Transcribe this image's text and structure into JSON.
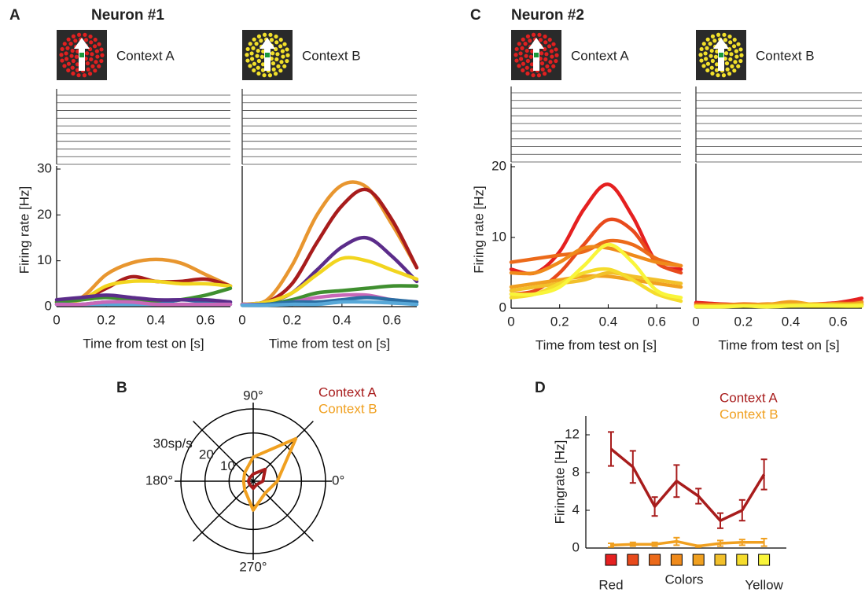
{
  "panels": [
    {
      "label": "A",
      "title": "Neuron  #1"
    },
    {
      "label": "B"
    },
    {
      "label": "C",
      "title": "Neuron  #2"
    },
    {
      "label": "D"
    }
  ],
  "chart_data": [
    {
      "type": "line",
      "title": "Context A",
      "xlabel": "Time from test on [s]",
      "ylabel": "Firing rate [Hz]",
      "x": [
        0,
        0.1,
        0.2,
        0.3,
        0.4,
        0.5,
        0.6,
        0.7
      ],
      "xlim": [
        0,
        0.7
      ],
      "xticks": [
        0,
        0.2,
        0.4,
        0.6
      ],
      "ylim": [
        0,
        30
      ],
      "yticks": [
        0,
        10,
        20,
        30
      ],
      "series": [
        {
          "color": "#e8962f",
          "values": [
            1,
            2,
            7,
            9.5,
            10.3,
            9.5,
            7,
            4.5
          ]
        },
        {
          "color": "#a81c1c",
          "values": [
            1,
            1.5,
            4,
            6.5,
            5.5,
            5.5,
            6,
            4.5
          ]
        },
        {
          "color": "#f2d51f",
          "values": [
            1,
            1.5,
            4.5,
            5.5,
            5.5,
            5,
            5,
            4.5
          ]
        },
        {
          "color": "#3f8f2f",
          "values": [
            1,
            1.5,
            2,
            1.5,
            1,
            1.5,
            2.5,
            4
          ]
        },
        {
          "color": "#2b6ea3",
          "values": [
            0.5,
            0.5,
            1,
            1,
            0.5,
            1.5,
            1,
            1
          ]
        },
        {
          "color": "#5b2c8a",
          "values": [
            1.5,
            2,
            2.5,
            2,
            1.5,
            1.5,
            1.5,
            1
          ]
        },
        {
          "color": "#58a8d8",
          "values": [
            0.5,
            0.5,
            0.5,
            0.5,
            0.5,
            0.5,
            0.5,
            0.5
          ]
        },
        {
          "color": "#c868b8",
          "values": [
            0.5,
            0.5,
            1,
            1,
            0.5,
            0.5,
            0.5,
            0.5
          ]
        }
      ]
    },
    {
      "type": "line",
      "title": "Context B",
      "xlabel": "Time from test on [s]",
      "x": [
        0,
        0.1,
        0.2,
        0.3,
        0.4,
        0.5,
        0.6,
        0.7
      ],
      "xlim": [
        0,
        0.7
      ],
      "xticks": [
        0,
        0.2,
        0.4,
        0.6
      ],
      "ylim": [
        0,
        30
      ],
      "series": [
        {
          "color": "#e8962f",
          "values": [
            0.5,
            1.5,
            9,
            20,
            26.5,
            26,
            18,
            8.5
          ]
        },
        {
          "color": "#a81c1c",
          "values": [
            0.5,
            1,
            5,
            14,
            22,
            25.5,
            19,
            8.5
          ]
        },
        {
          "color": "#5b2c8a",
          "values": [
            0.5,
            1,
            3,
            8,
            13,
            15,
            11,
            5.5
          ]
        },
        {
          "color": "#f2d51f",
          "values": [
            0.5,
            1,
            3,
            7,
            10.5,
            10,
            8,
            6
          ]
        },
        {
          "color": "#3f8f2f",
          "values": [
            0.5,
            0.5,
            1.5,
            3,
            3.5,
            4,
            4.5,
            4.5
          ]
        },
        {
          "color": "#c868b8",
          "values": [
            0.5,
            0.5,
            1,
            2,
            2.5,
            2.5,
            1.5,
            1
          ]
        },
        {
          "color": "#2b6ea3",
          "values": [
            0.3,
            0.5,
            1,
            1,
            1.5,
            2,
            1.5,
            1
          ]
        },
        {
          "color": "#58a8d8",
          "values": [
            0.3,
            0.3,
            0.5,
            0.5,
            1,
            1,
            0.8,
            0.5
          ]
        }
      ]
    },
    {
      "type": "line",
      "title": "Context A",
      "xlabel": "Time from test on [s]",
      "ylabel": "Firing rate [Hz]",
      "x": [
        0,
        0.1,
        0.2,
        0.3,
        0.4,
        0.5,
        0.6,
        0.7
      ],
      "xlim": [
        0,
        0.7
      ],
      "xticks": [
        0,
        0.2,
        0.4,
        0.6
      ],
      "ylim": [
        0,
        20
      ],
      "yticks": [
        0,
        10,
        20
      ],
      "series": [
        {
          "color": "#e52020",
          "values": [
            5.5,
            5,
            8,
            14,
            17.5,
            13,
            6.5,
            5.5
          ]
        },
        {
          "color": "#e84a1c",
          "values": [
            2,
            2.5,
            5,
            9,
            12.5,
            11,
            6.5,
            5
          ]
        },
        {
          "color": "#ec6a1a",
          "values": [
            6.5,
            7,
            7.5,
            8,
            9.5,
            9,
            7,
            6
          ]
        },
        {
          "color": "#ef8a1b",
          "values": [
            5,
            5,
            6.5,
            8.5,
            8.5,
            7.5,
            6.5,
            6
          ]
        },
        {
          "color": "#f0a020",
          "values": [
            3,
            3.5,
            4,
            4.5,
            4.5,
            4,
            3.5,
            3
          ]
        },
        {
          "color": "#f2c02a",
          "values": [
            2.5,
            3,
            3.5,
            4,
            5,
            4.5,
            4,
            3.5
          ]
        },
        {
          "color": "#f5dc2c",
          "values": [
            1.5,
            2,
            3.5,
            5,
            5.5,
            4,
            2,
            1
          ]
        },
        {
          "color": "#f9f53a",
          "values": [
            2,
            2,
            3,
            6,
            9,
            6.5,
            2.5,
            1.5
          ]
        }
      ]
    },
    {
      "type": "line",
      "title": "Context B",
      "xlabel": "Time from test on [s]",
      "x": [
        0,
        0.1,
        0.2,
        0.3,
        0.4,
        0.5,
        0.6,
        0.7
      ],
      "xlim": [
        0,
        0.7
      ],
      "xticks": [
        0,
        0.2,
        0.4,
        0.6
      ],
      "ylim": [
        0,
        20
      ],
      "series": [
        {
          "color": "#e52020",
          "values": [
            0.8,
            0.6,
            0.5,
            0.4,
            0.5,
            0.6,
            0.8,
            1.4
          ]
        },
        {
          "color": "#e84a1c",
          "values": [
            0.6,
            0.5,
            0.5,
            0.5,
            0.4,
            0.5,
            0.6,
            0.9
          ]
        },
        {
          "color": "#ec6a1a",
          "values": [
            0.5,
            0.4,
            0.6,
            0.5,
            0.7,
            0.5,
            0.5,
            0.6
          ]
        },
        {
          "color": "#ef8a1b",
          "values": [
            0.4,
            0.5,
            0.4,
            0.6,
            0.5,
            0.4,
            0.7,
            0.5
          ]
        },
        {
          "color": "#f0a020",
          "values": [
            0.3,
            0.4,
            0.5,
            0.5,
            0.9,
            0.5,
            0.4,
            0.8
          ]
        },
        {
          "color": "#f2c02a",
          "values": [
            0.2,
            0.3,
            0.3,
            0.4,
            0.5,
            0.6,
            0.5,
            0.4
          ]
        },
        {
          "color": "#f5dc2c",
          "values": [
            0.3,
            0.2,
            0.3,
            0.3,
            0.4,
            0.3,
            0.4,
            0.5
          ]
        },
        {
          "color": "#f9f53a",
          "values": [
            0.2,
            0.2,
            0.3,
            0.2,
            0.3,
            0.4,
            0.3,
            0.3
          ]
        }
      ]
    },
    {
      "type": "polar",
      "theta": [
        0,
        45,
        90,
        135,
        180,
        225,
        270,
        315
      ],
      "rlim": [
        0,
        30
      ],
      "rticks": [
        10,
        20,
        {
          "value": 30,
          "label": "30sp/s"
        }
      ],
      "thetaticks": [
        {
          "value": 90,
          "label": "90°"
        },
        {
          "value": 0,
          "label": "0°"
        },
        {
          "value": 180,
          "label": "180°"
        },
        {
          "value": 270,
          "label": "270°"
        }
      ],
      "series": [
        {
          "name": "Context A",
          "color": "#a81c1c",
          "values": [
            4,
            7,
            3,
            2,
            2,
            2,
            3,
            2
          ]
        },
        {
          "name": "Context B",
          "color": "#f0a020",
          "values": [
            10,
            25,
            10,
            5,
            4,
            5,
            12,
            7
          ]
        }
      ]
    },
    {
      "type": "errorline",
      "xlabel": "Colors",
      "ylabel": "Firingrate [Hz]",
      "categories": [
        null,
        null,
        null,
        null,
        null,
        null,
        null,
        null
      ],
      "category_colors": [
        "#e52020",
        "#e84a1c",
        "#ec6a1a",
        "#ef8a1b",
        "#f0a020",
        "#f2c02a",
        "#f5dc2c",
        "#f9f53a"
      ],
      "annotations": [
        "Red",
        "Yellow"
      ],
      "ylim": [
        0,
        14
      ],
      "yticks": [
        0,
        4,
        8,
        12
      ],
      "series": [
        {
          "name": "Context A",
          "color": "#a81c1c",
          "values": [
            10.5,
            8.6,
            4.4,
            7.1,
            5.5,
            2.9,
            4,
            7.8
          ],
          "errors": [
            1.8,
            1.7,
            1,
            1.7,
            0.8,
            0.8,
            1.1,
            1.6
          ]
        },
        {
          "name": "Context B",
          "color": "#f0a020",
          "values": [
            0.3,
            0.4,
            0.4,
            0.7,
            0.2,
            0.5,
            0.6,
            0.6
          ],
          "errors": [
            0.2,
            0.2,
            0.2,
            0.4,
            0.1,
            0.3,
            0.3,
            0.4
          ]
        }
      ]
    }
  ]
}
